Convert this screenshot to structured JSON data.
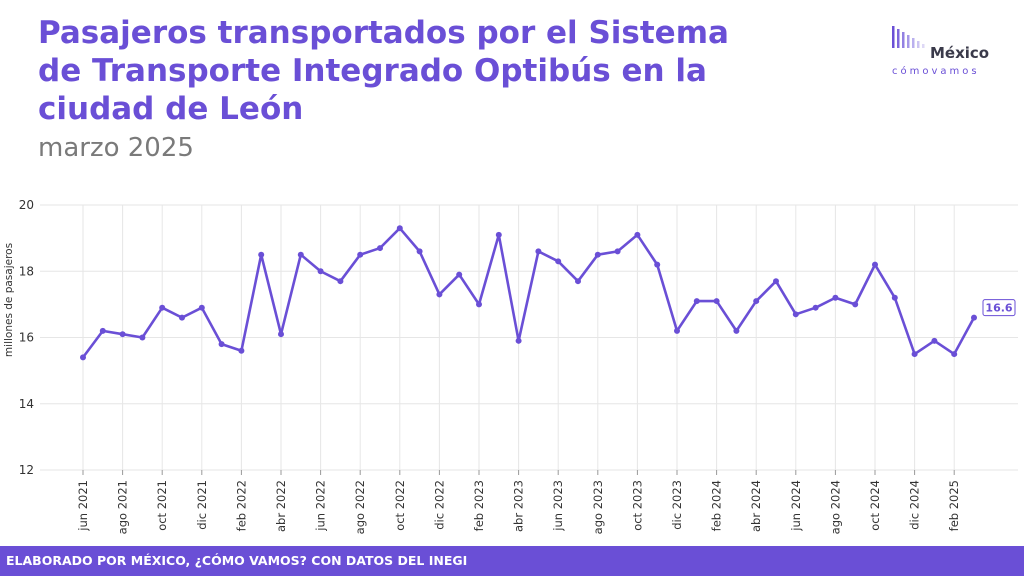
{
  "header": {
    "title_lines": [
      "Pasajeros transportados por el Sistema",
      "de Transporte Integrado Optibús en la",
      "ciudad de León"
    ],
    "subtitle": "marzo 2025"
  },
  "logo": {
    "word1": "México",
    "word2": "cómovamos",
    "icon": "bars-logo-icon"
  },
  "footer": {
    "text": "ELABORADO POR MÉXICO, ¿CÓMO VAMOS? CON DATOS DEL INEGI"
  },
  "colors": {
    "accent": "#6a4fd6",
    "grid": "#e6e6e6",
    "axis_text": "#333333"
  },
  "chart_data": {
    "type": "line",
    "title": "Pasajeros transportados por el Sistema de Transporte Integrado Optibús en la ciudad de León",
    "subtitle": "marzo 2025",
    "xlabel": "",
    "ylabel": "millones de pasajeros",
    "ylim": [
      12,
      20
    ],
    "yticks": [
      12,
      14,
      16,
      18,
      20
    ],
    "grid": true,
    "x": [
      "jun 2021",
      "jul 2021",
      "ago 2021",
      "sep 2021",
      "oct 2021",
      "nov 2021",
      "dic 2021",
      "ene 2022",
      "feb 2022",
      "mar 2022",
      "abr 2022",
      "may 2022",
      "jun 2022",
      "jul 2022",
      "ago 2022",
      "sep 2022",
      "oct 2022",
      "nov 2022",
      "dic 2022",
      "ene 2023",
      "feb 2023",
      "mar 2023",
      "abr 2023",
      "may 2023",
      "jun 2023",
      "jul 2023",
      "ago 2023",
      "sep 2023",
      "oct 2023",
      "nov 2023",
      "dic 2023",
      "ene 2024",
      "feb 2024",
      "mar 2024",
      "abr 2024",
      "may 2024",
      "jun 2024",
      "jul 2024",
      "ago 2024",
      "sep 2024",
      "oct 2024",
      "nov 2024",
      "dic 2024",
      "ene 2025",
      "feb 2025",
      "mar 2025"
    ],
    "x_tick_labels": [
      "jun 2021",
      "ago 2021",
      "oct 2021",
      "dic 2021",
      "feb 2022",
      "abr 2022",
      "jun 2022",
      "ago 2022",
      "oct 2022",
      "dic 2022",
      "feb 2023",
      "abr 2023",
      "jun 2023",
      "ago 2023",
      "oct 2023",
      "dic 2023",
      "feb 2024",
      "abr 2024",
      "jun 2024",
      "ago 2024",
      "oct 2024",
      "dic 2024",
      "feb 2025"
    ],
    "series": [
      {
        "values": [
          15.4,
          16.2,
          16.1,
          16.0,
          16.9,
          16.6,
          16.9,
          15.8,
          15.6,
          18.5,
          16.1,
          18.5,
          18.0,
          17.7,
          18.5,
          18.7,
          19.3,
          18.6,
          17.3,
          17.9,
          17.0,
          19.1,
          15.9,
          18.6,
          18.3,
          17.7,
          18.5,
          18.6,
          19.1,
          18.2,
          16.2,
          17.1,
          17.1,
          16.2,
          17.1,
          17.7,
          16.7,
          16.9,
          17.2,
          17.0,
          18.2,
          17.2,
          15.5,
          15.9,
          15.5,
          16.6
        ]
      }
    ],
    "last_value_label": "16.6"
  }
}
